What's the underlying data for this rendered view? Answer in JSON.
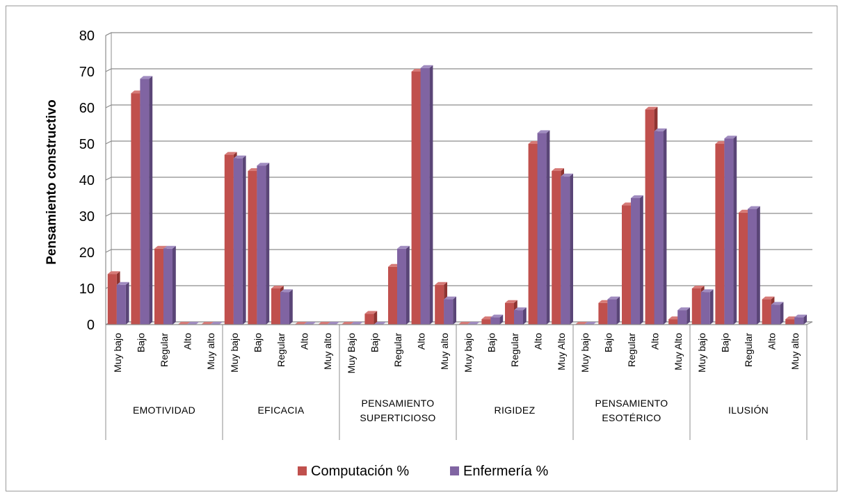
{
  "chart_data": {
    "type": "bar",
    "ylabel": "Pensamiento constructivo",
    "ylim": [
      0,
      80
    ],
    "yticks": [
      0,
      10,
      20,
      30,
      40,
      50,
      60,
      70,
      80
    ],
    "grid": true,
    "legend_position": "bottom",
    "groups": [
      {
        "label_lines": [
          "EMOTIVIDAD"
        ],
        "categories": [
          "Muy bajo",
          "Bajo",
          "Regular",
          "Alto",
          "Muy alto"
        ]
      },
      {
        "label_lines": [
          "EFICACIA"
        ],
        "categories": [
          "Muy bajo",
          "Bajo",
          "Regular",
          "Alto",
          "Muy alto"
        ]
      },
      {
        "label_lines": [
          "PENSAMIENTO",
          "SUPERTICIOSO"
        ],
        "categories": [
          "Muy Bajo",
          "Bajo",
          "Regular",
          "Alto",
          "Muy alto"
        ]
      },
      {
        "label_lines": [
          "RIGIDEZ"
        ],
        "categories": [
          "Muy bajo",
          "Bajo",
          "Regular",
          "Alto",
          "Muy Alto"
        ]
      },
      {
        "label_lines": [
          "PENSAMIENTO",
          "ESOTÉRICO"
        ],
        "categories": [
          "Muy bajo",
          "Bajo",
          "Regular",
          "Alto",
          "Muy Alto"
        ]
      },
      {
        "label_lines": [
          "ILUSIÓN"
        ],
        "categories": [
          "Muy bajo",
          "Bajo",
          "Regular",
          "Alto",
          "Muy alto"
        ]
      }
    ],
    "series": [
      {
        "name": "Computación %",
        "color": "#c0504d",
        "values": [
          14,
          64,
          21,
          0,
          0,
          47,
          42.5,
          10,
          0,
          0,
          0,
          3,
          16,
          70,
          11,
          0,
          1.5,
          6,
          50,
          42.5,
          0,
          6,
          33,
          59.5,
          1.5,
          10,
          50,
          31,
          7,
          1.5
        ]
      },
      {
        "name": "Enfermería %",
        "color": "#8064a2",
        "values": [
          11,
          68,
          21,
          0,
          0,
          46,
          44,
          9,
          0,
          0,
          0,
          0,
          21,
          71,
          7,
          0,
          2,
          4,
          53,
          41,
          0,
          7,
          35,
          53.5,
          4,
          9,
          51.5,
          32,
          5.5,
          2
        ]
      }
    ]
  }
}
